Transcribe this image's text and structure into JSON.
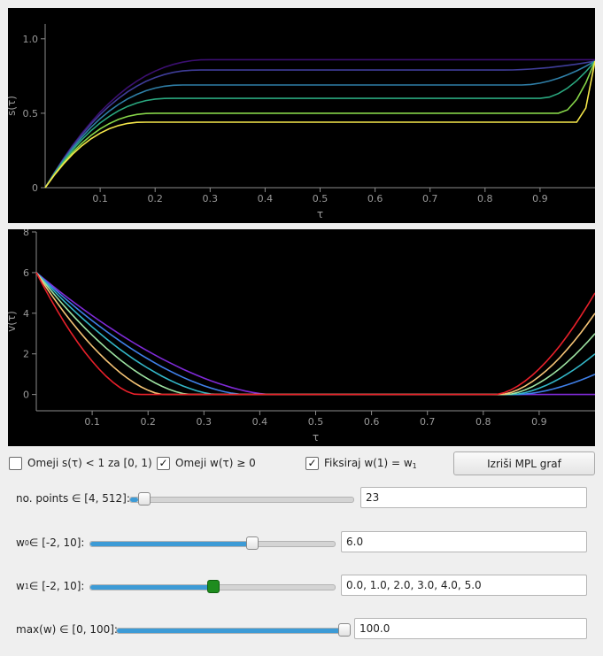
{
  "plots": {
    "s": {
      "ylabel": "s(τ)",
      "xlabel": "τ",
      "yticks": [
        "0",
        "0.5",
        "1.0"
      ],
      "xticks": [
        "0.1",
        "0.2",
        "0.3",
        "0.4",
        "0.5",
        "0.6",
        "0.7",
        "0.8",
        "0.9"
      ]
    },
    "v": {
      "ylabel": "v(τ)",
      "xlabel": "τ",
      "yticks": [
        "0",
        "2",
        "4",
        "6",
        "8"
      ],
      "xticks": [
        "0.1",
        "0.2",
        "0.3",
        "0.4",
        "0.5",
        "0.6",
        "0.7",
        "0.8",
        "0.9"
      ]
    }
  },
  "chart_data": [
    {
      "type": "line",
      "xlabel": "τ",
      "ylabel": "s(τ)",
      "xlim": [
        0,
        1
      ],
      "ylim": [
        0,
        1.1
      ],
      "plateaus": [
        0.86,
        0.79,
        0.69,
        0.6,
        0.5,
        0.44
      ],
      "end_value": 0.85,
      "colors": [
        "#3b0f70",
        "#3f3d99",
        "#2f7fa8",
        "#2aa87f",
        "#86d549",
        "#f5e74a"
      ]
    },
    {
      "type": "line",
      "xlabel": "τ",
      "ylabel": "v(τ)",
      "xlim": [
        0,
        1
      ],
      "ylim": [
        -0.8,
        8
      ],
      "start_value": 6.0,
      "end_values": [
        0,
        1,
        2,
        3,
        4,
        5
      ],
      "colors": [
        "#7f2ad8",
        "#3f7fe8",
        "#33b7c8",
        "#9ee3a2",
        "#f6c476",
        "#e8202a"
      ]
    }
  ],
  "controls": {
    "cb1": {
      "label": "Omeji s(τ) < 1 za [0, 1)",
      "checked": ""
    },
    "cb2": {
      "label": "Omeji w(τ) ≥ 0",
      "checked": "✓"
    },
    "cb3": {
      "label": "Fiksiraj w(1) = w",
      "sub": "1",
      "checked": "✓"
    },
    "button": "Izriši MPL graf",
    "points": {
      "label": "no. points ∈ [4, 512]:",
      "value": "23",
      "slider": 0.037
    },
    "w0": {
      "prefix": "w",
      "sub": "0",
      "label": " ∈ [-2, 10]:",
      "value": "6.0",
      "slider": 0.667
    },
    "w1": {
      "prefix": "w",
      "sub": "1",
      "label": " ∈ [-2, 10]:",
      "value": "0.0, 1.0, 2.0, 3.0, 4.0, 5.0",
      "slider": 0.5
    },
    "maxw": {
      "label": "max(w) ∈ [0, 100]:",
      "value": "100.0",
      "slider": 1.0
    }
  }
}
